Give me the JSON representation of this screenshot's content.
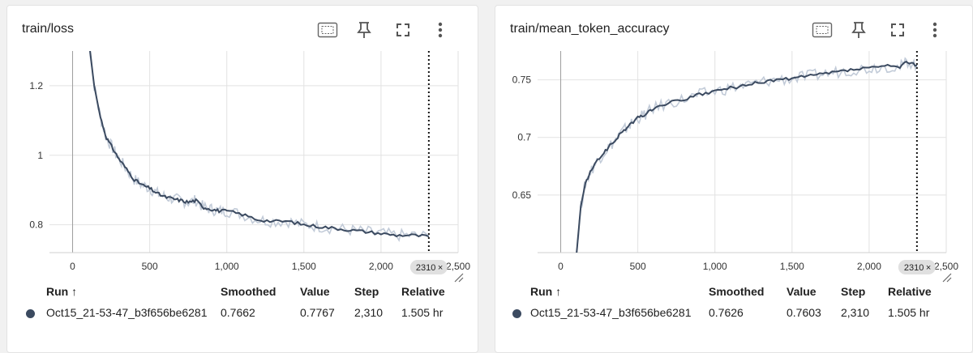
{
  "cards": [
    {
      "title": "train/loss",
      "toolbar": {
        "fit_icon": "fit-domain-icon",
        "pin_icon": "pin-icon",
        "fullscreen_icon": "fullscreen-icon",
        "more_icon": "more-vert-icon"
      },
      "cursor_step_label": "2310",
      "cursor_close_label": "×",
      "table": {
        "headers": {
          "run": "Run ↑",
          "smoothed": "Smoothed",
          "value": "Value",
          "step": "Step",
          "relative": "Relative"
        },
        "row": {
          "run": "Oct15_21-53-47_b3f656be6281",
          "smoothed": "0.7662",
          "value": "0.7767",
          "step": "2,310",
          "relative": "1.505 hr"
        },
        "run_color": "#3b4a60"
      }
    },
    {
      "title": "train/mean_token_accuracy",
      "toolbar": {
        "fit_icon": "fit-domain-icon",
        "pin_icon": "pin-icon",
        "fullscreen_icon": "fullscreen-icon",
        "more_icon": "more-vert-icon"
      },
      "cursor_step_label": "2310",
      "cursor_close_label": "×",
      "table": {
        "headers": {
          "run": "Run ↑",
          "smoothed": "Smoothed",
          "value": "Value",
          "step": "Step",
          "relative": "Relative"
        },
        "row": {
          "run": "Oct15_21-53-47_b3f656be6281",
          "smoothed": "0.7626",
          "value": "0.7603",
          "step": "2,310",
          "relative": "1.505 hr"
        },
        "run_color": "#3b4a60"
      }
    }
  ],
  "chart_data": [
    {
      "type": "line",
      "title": "train/loss",
      "xlim": [
        -150,
        2500
      ],
      "ylim": [
        0.72,
        1.3
      ],
      "x_ticks": [
        0,
        500,
        1000,
        1500,
        2000,
        2500
      ],
      "x_tick_labels": [
        "0",
        "500",
        "1,000",
        "1,500",
        "2,000",
        "2,500"
      ],
      "y_ticks": [
        0.8,
        1.0,
        1.2
      ],
      "y_tick_labels": [
        "0.8",
        "1",
        "1.2"
      ],
      "cursor_step": 2310,
      "smoothed_color": "#3b4a60",
      "raw_color": "#c2cbd8",
      "series": [
        {
          "x": [
            100,
            140,
            180,
            220,
            260,
            300,
            350,
            400,
            450,
            500,
            550,
            600,
            650,
            700,
            750,
            800,
            850,
            900,
            950,
            1000,
            1100,
            1200,
            1300,
            1400,
            1500,
            1600,
            1700,
            1800,
            1900,
            2000,
            2100,
            2200,
            2310
          ],
          "y": [
            1.35,
            1.2,
            1.11,
            1.05,
            1.02,
            0.99,
            0.96,
            0.93,
            0.915,
            0.905,
            0.89,
            0.88,
            0.875,
            0.87,
            0.865,
            0.87,
            0.85,
            0.845,
            0.84,
            0.84,
            0.83,
            0.815,
            0.81,
            0.81,
            0.8,
            0.795,
            0.79,
            0.785,
            0.78,
            0.775,
            0.77,
            0.77,
            0.7662
          ]
        }
      ]
    },
    {
      "type": "line",
      "title": "train/mean_token_accuracy",
      "xlim": [
        -150,
        2500
      ],
      "ylim": [
        0.6,
        0.775
      ],
      "x_ticks": [
        0,
        500,
        1000,
        1500,
        2000,
        2500
      ],
      "x_tick_labels": [
        "0",
        "500",
        "1,000",
        "1,500",
        "2,000",
        "2,500"
      ],
      "y_ticks": [
        0.65,
        0.7,
        0.75
      ],
      "y_tick_labels": [
        "0.65",
        "0.7",
        "0.75"
      ],
      "cursor_step": 2310,
      "smoothed_color": "#3b4a60",
      "raw_color": "#c2cbd8",
      "series": [
        {
          "x": [
            100,
            130,
            160,
            200,
            250,
            300,
            350,
            400,
            450,
            500,
            550,
            600,
            700,
            800,
            900,
            1000,
            1100,
            1200,
            1300,
            1400,
            1500,
            1600,
            1700,
            1800,
            1900,
            2000,
            2100,
            2200,
            2250,
            2310
          ],
          "y": [
            0.595,
            0.64,
            0.66,
            0.672,
            0.682,
            0.69,
            0.697,
            0.705,
            0.711,
            0.717,
            0.72,
            0.725,
            0.73,
            0.733,
            0.737,
            0.74,
            0.743,
            0.745,
            0.748,
            0.75,
            0.751,
            0.753,
            0.755,
            0.757,
            0.759,
            0.76,
            0.762,
            0.761,
            0.766,
            0.7626
          ]
        }
      ]
    }
  ]
}
